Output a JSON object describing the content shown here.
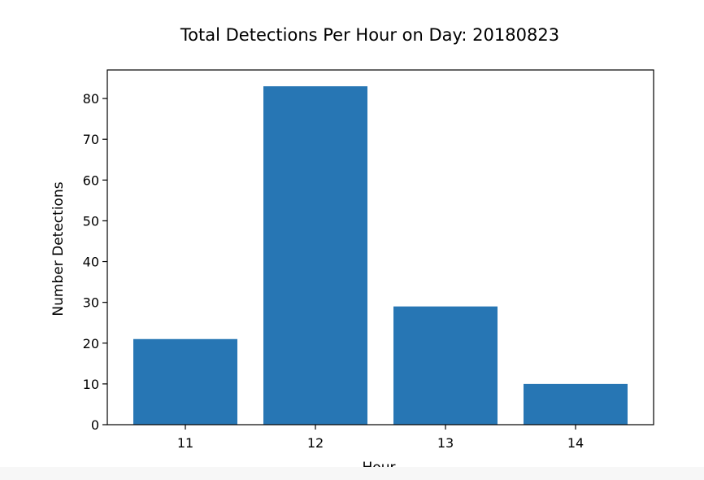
{
  "chart_data": {
    "type": "bar",
    "title": "Total Detections Per Hour on Day: 20180823",
    "xlabel": "Hour",
    "ylabel": "Number Detections",
    "categories": [
      "11",
      "12",
      "13",
      "14"
    ],
    "values": [
      21,
      83,
      29,
      10
    ],
    "ylim": [
      0,
      87
    ],
    "yticks": [
      0,
      10,
      20,
      30,
      40,
      50,
      60,
      70,
      80
    ],
    "bar_color": "#2776b4",
    "grid": false,
    "legend": "none"
  }
}
